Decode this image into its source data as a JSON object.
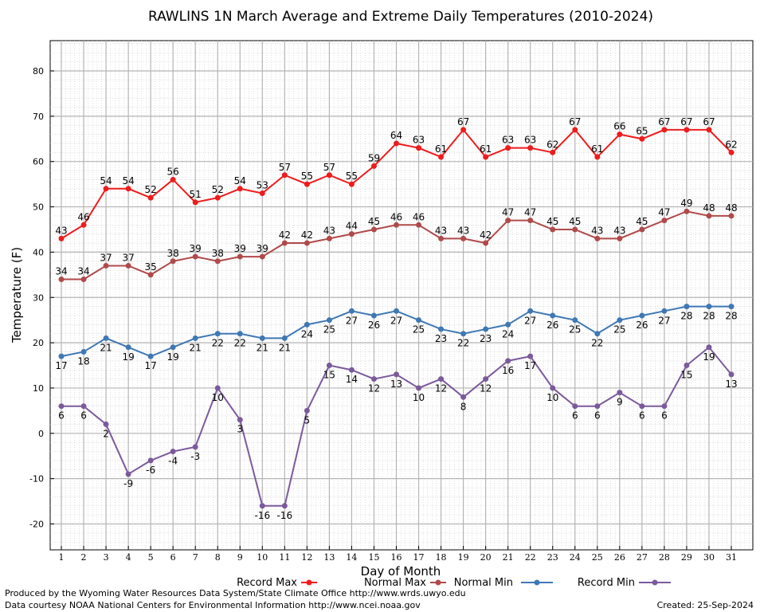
{
  "chart_data": {
    "type": "line",
    "title": "RAWLINS 1N March Average and Extreme Daily Temperatures (2010-2024)",
    "xlabel": "Day of Month",
    "ylabel": "Temperature (F)",
    "xlim": [
      0.5,
      31.5
    ],
    "ylim": [
      -27,
      87
    ],
    "yticks": [
      -20,
      -10,
      0,
      10,
      20,
      30,
      40,
      50,
      60,
      70,
      80
    ],
    "x": [
      1,
      2,
      3,
      4,
      5,
      6,
      7,
      8,
      9,
      10,
      11,
      12,
      13,
      14,
      15,
      16,
      17,
      18,
      19,
      20,
      21,
      22,
      23,
      24,
      25,
      26,
      27,
      28,
      29,
      30,
      31
    ],
    "grid": true,
    "legend_position": "bottom",
    "series": [
      {
        "name": "Record Max",
        "color": "#ee1c1c",
        "label_pos": "above",
        "values": [
          43,
          46,
          54,
          54,
          52,
          56,
          51,
          52,
          54,
          53,
          57,
          55,
          57,
          55,
          59,
          64,
          63,
          61,
          67,
          61,
          63,
          63,
          62,
          67,
          61,
          66,
          65,
          67,
          67,
          67,
          62
        ]
      },
      {
        "name": "Normal Max",
        "color": "#b04a4a",
        "label_pos": "above",
        "values": [
          34,
          34,
          37,
          37,
          35,
          38,
          39,
          38,
          39,
          39,
          42,
          42,
          43,
          44,
          45,
          46,
          46,
          43,
          43,
          42,
          47,
          47,
          45,
          45,
          43,
          43,
          45,
          47,
          49,
          48,
          48
        ]
      },
      {
        "name": "Normal Min",
        "color": "#3f78b4",
        "label_pos": "below",
        "values": [
          17,
          18,
          21,
          19,
          17,
          19,
          21,
          22,
          22,
          21,
          21,
          24,
          25,
          27,
          26,
          27,
          25,
          23,
          22,
          23,
          24,
          27,
          26,
          25,
          22,
          25,
          26,
          27,
          28,
          28,
          28
        ]
      },
      {
        "name": "Record Min",
        "color": "#7b5a9c",
        "label_pos": "below",
        "values": [
          6,
          6,
          2,
          -9,
          -6,
          -4,
          -3,
          10,
          3,
          -16,
          -16,
          5,
          15,
          14,
          12,
          13,
          10,
          12,
          8,
          12,
          16,
          17,
          10,
          6,
          6,
          9,
          6,
          6,
          15,
          19,
          13
        ]
      }
    ]
  },
  "footer": {
    "line1": "Produced by the Wyoming Water Resources Data System/State Climate Office http://www.wrds.uwyo.edu",
    "line2": "Data courtesy NOAA National Centers for Environmental Information http://www.ncei.noaa.gov",
    "created": "Created:  25-Sep-2024"
  }
}
